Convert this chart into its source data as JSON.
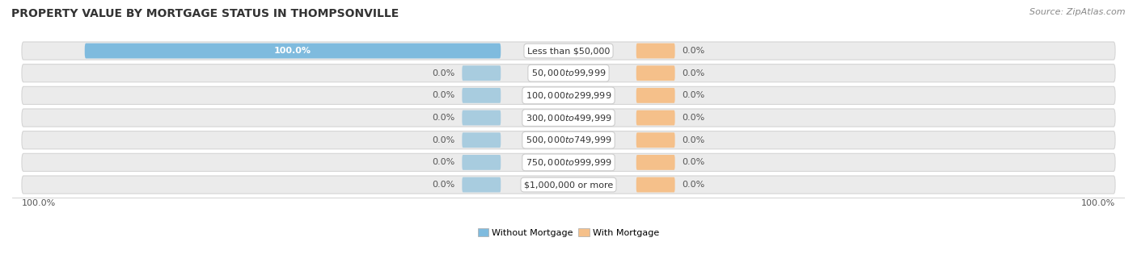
{
  "title": "PROPERTY VALUE BY MORTGAGE STATUS IN THOMPSONVILLE",
  "source": "Source: ZipAtlas.com",
  "categories": [
    "Less than $50,000",
    "$50,000 to $99,999",
    "$100,000 to $299,999",
    "$300,000 to $499,999",
    "$500,000 to $749,999",
    "$750,000 to $999,999",
    "$1,000,000 or more"
  ],
  "without_mortgage": [
    100.0,
    0.0,
    0.0,
    0.0,
    0.0,
    0.0,
    0.0
  ],
  "with_mortgage": [
    0.0,
    0.0,
    0.0,
    0.0,
    0.0,
    0.0,
    0.0
  ],
  "color_without": "#7FBBDE",
  "color_with": "#F5C08A",
  "color_without_stub": "#A8CCDF",
  "color_with_stub": "#F5C08A",
  "bar_row_bg": "#EBEBEB",
  "bar_row_edge": "#D5D5D5",
  "figsize": [
    14.06,
    3.41
  ],
  "dpi": 100,
  "x_left_label": "100.0%",
  "x_right_label": "100.0%",
  "legend_without": "Without Mortgage",
  "legend_with": "With Mortgage",
  "title_fontsize": 10,
  "source_fontsize": 8,
  "label_fontsize": 8,
  "pct_fontsize": 8
}
